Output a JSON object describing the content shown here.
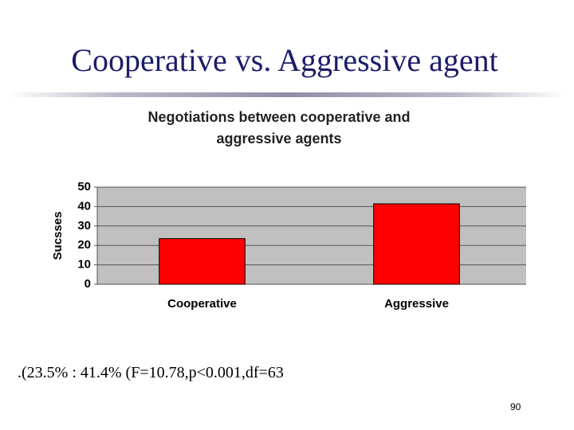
{
  "title": "Cooperative vs. Aggressive agent",
  "chart_data": {
    "type": "bar",
    "title": "Negotiations between cooperative and aggressive agents",
    "y_label": "Sucsses",
    "categories": [
      "Cooperative",
      "Aggressive"
    ],
    "values": [
      23.5,
      41.4
    ],
    "color": "#ff0000",
    "ylim": [
      0,
      50
    ],
    "yticks": [
      0,
      10,
      20,
      30,
      40,
      50
    ],
    "grid": true
  },
  "caption": ".(23.5% : 41.4% (F=10.78,p<0.001,df=63",
  "page_number": "90"
}
